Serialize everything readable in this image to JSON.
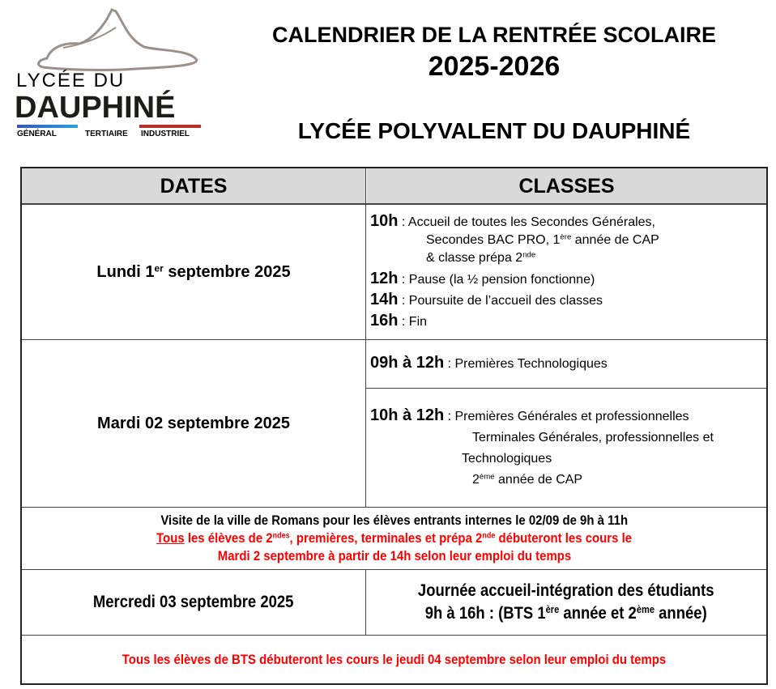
{
  "logo": {
    "line1": "LYCÉE DU",
    "line2": "DAUPHINÉ",
    "tags": [
      "GÉNÉRAL",
      "TERTIAIRE",
      "INDUSTRIEL"
    ],
    "colors": {
      "shoe": "#9a918c",
      "blue": "#2a7fd4",
      "red": "#b8302c"
    }
  },
  "title": {
    "line1": "CALENDRIER DE LA RENTRÉE SCOLAIRE",
    "line2": "2025-2026",
    "line3": "LYCÉE POLYVALENT DU DAUPHINÉ"
  },
  "table": {
    "headers": [
      "DATES",
      "CLASSES"
    ],
    "row1": {
      "date": {
        "a": "Lundi 1",
        "sup": "er",
        "b": " septembre 2025"
      },
      "items": [
        {
          "time": "10h",
          "text": " :  Accueil de toutes les Secondes Générales,"
        },
        {
          "text_a": "Secondes BAC PRO, 1",
          "sup": "ère",
          "text_b": " année de CAP"
        },
        {
          "text_a": "& classe prépa 2",
          "sup": "nde"
        },
        {
          "time": "12h",
          "text": " : Pause (la ½ pension fonctionne)"
        },
        {
          "time": "14h",
          "text": " : Poursuite de l’accueil des classes"
        },
        {
          "time": "16h",
          "text": " : Fin"
        }
      ]
    },
    "row2": {
      "date": "Mardi 02 septembre 2025",
      "a": {
        "time": "09h à 12h",
        "text": " : Premières Technologiques"
      },
      "b": {
        "time": "10h à 12h",
        "text": " : Premières Générales et professionnelles",
        "l2": "Terminales Générales, professionnelles et",
        "l3": "Technologiques",
        "l4a": "2",
        "l4sup": "ème",
        "l4b": " année de CAP"
      }
    },
    "row3": {
      "l1": "Visite de la ville de Romans pour les élèves entrants internes le 02/09 de 9h à 11h",
      "l2_u": "Tous",
      "l2_a": " les élèves de 2",
      "l2_sup1": "ndes",
      "l2_b": ", premières, terminales et prépa 2",
      "l2_sup2": "nde",
      "l2_c": " débuteront les cours le",
      "l3": "Mardi 2 septembre à partir de 14h selon leur emploi du temps"
    },
    "row4": {
      "date": "Mercredi 03 septembre 2025",
      "l1": "Journée accueil-intégration des étudiants",
      "l2_a": "9h à 16h : (BTS 1",
      "sup1": "ère",
      "l2_b": " année et 2",
      "sup2": "ème",
      "l2_c": " année)"
    },
    "row5": {
      "a": "Tous les élèves de ",
      "b": "BTS",
      "c": " débuteront les cours le jeudi 04 septembre selon leur emploi du temps"
    }
  },
  "colors": {
    "accent_red": "#ff0000",
    "header_bg": "#d9d9d9"
  }
}
